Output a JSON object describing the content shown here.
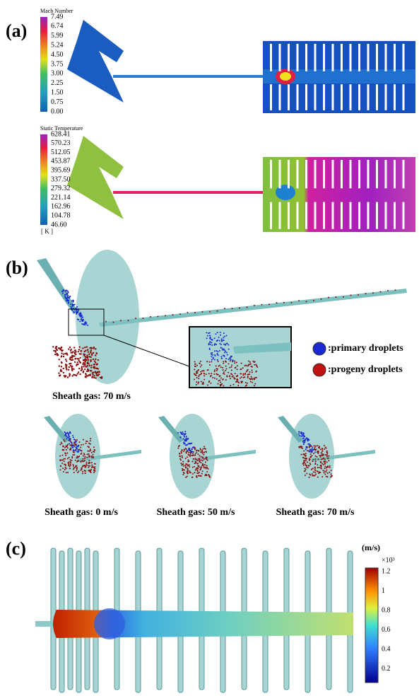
{
  "panel_a": {
    "label": "(a)",
    "mach": {
      "title": "Mach Number",
      "ticks": [
        "7.49",
        "6.74",
        "5.99",
        "5.24",
        "4.50",
        "3.75",
        "3.00",
        "2.25",
        "1.50",
        "0.75",
        "0.00"
      ]
    },
    "temperature": {
      "title": "Static Temperature",
      "ticks": [
        "628.41",
        "570.23",
        "512.05",
        "453.87",
        "395.69",
        "337.50",
        "279.32",
        "221.14",
        "162.96",
        "104.78",
        "46.60"
      ],
      "unit": "[ K ]"
    }
  },
  "panel_b": {
    "label": "(b)",
    "main_caption": "Sheath gas: 70 m/s",
    "legend": [
      ":primary droplets",
      ":progeny droplets"
    ],
    "captions": [
      "Sheath gas: 0 m/s",
      "Sheath gas: 50 m/s",
      "Sheath gas: 70 m/s"
    ]
  },
  "panel_c": {
    "label": "(c)",
    "unit": "(m/s)",
    "scale": "×10³",
    "ticks": [
      "1.2",
      "1",
      "0.8",
      "0.6",
      "0.4",
      "0.2"
    ]
  }
}
